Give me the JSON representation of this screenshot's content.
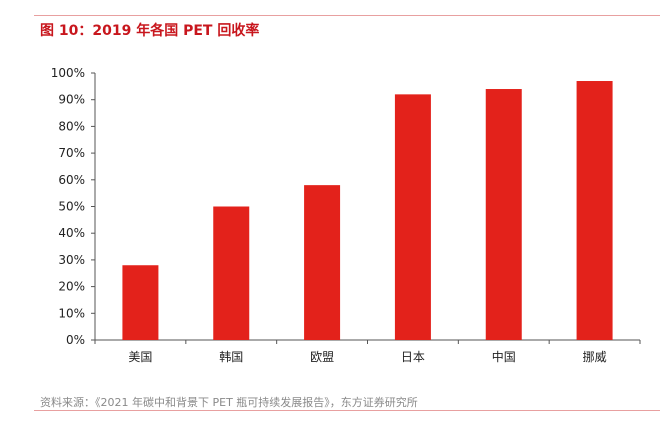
{
  "header": {
    "title": "图 10：2019 年各国 PET 回收率"
  },
  "footer": {
    "source": "资料来源：《2021 年碳中和背景下 PET 瓶可持续发展报告》，东方证券研究所"
  },
  "chart_data": {
    "type": "bar",
    "categories": [
      "美国",
      "韩国",
      "欧盟",
      "日本",
      "中国",
      "挪威"
    ],
    "values": [
      28,
      50,
      58,
      92,
      94,
      97
    ],
    "ylim": [
      0,
      100
    ],
    "yticks": [
      "0%",
      "10%",
      "20%",
      "30%",
      "40%",
      "50%",
      "60%",
      "70%",
      "80%",
      "90%",
      "100%"
    ],
    "grid": false,
    "bar_color": "#e3221b",
    "title": "",
    "xlabel": "",
    "ylabel": ""
  }
}
